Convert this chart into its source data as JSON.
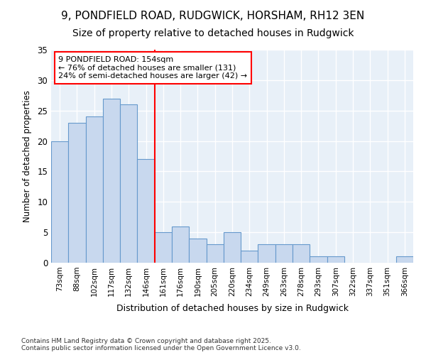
{
  "title1": "9, PONDFIELD ROAD, RUDGWICK, HORSHAM, RH12 3EN",
  "title2": "Size of property relative to detached houses in Rudgwick",
  "xlabel": "Distribution of detached houses by size in Rudgwick",
  "ylabel": "Number of detached properties",
  "categories": [
    "73sqm",
    "88sqm",
    "102sqm",
    "117sqm",
    "132sqm",
    "146sqm",
    "161sqm",
    "176sqm",
    "190sqm",
    "205sqm",
    "220sqm",
    "234sqm",
    "249sqm",
    "263sqm",
    "278sqm",
    "293sqm",
    "307sqm",
    "322sqm",
    "337sqm",
    "351sqm",
    "366sqm"
  ],
  "values": [
    20,
    23,
    24,
    27,
    26,
    17,
    5,
    6,
    4,
    3,
    5,
    2,
    3,
    3,
    3,
    1,
    1,
    0,
    0,
    0,
    1
  ],
  "bar_color": "#c8d8ee",
  "bar_edge_color": "#6699cc",
  "vline_x_index": 6,
  "vline_color": "red",
  "annotation_text": "9 PONDFIELD ROAD: 154sqm\n← 76% of detached houses are smaller (131)\n24% of semi-detached houses are larger (42) →",
  "annotation_box_color": "white",
  "annotation_box_edge_color": "red",
  "ylim": [
    0,
    35
  ],
  "yticks": [
    0,
    5,
    10,
    15,
    20,
    25,
    30,
    35
  ],
  "footer": "Contains HM Land Registry data © Crown copyright and database right 2025.\nContains public sector information licensed under the Open Government Licence v3.0.",
  "fig_bg_color": "#ffffff",
  "plot_bg_color": "#e8f0f8",
  "title1_fontsize": 11,
  "title2_fontsize": 10
}
